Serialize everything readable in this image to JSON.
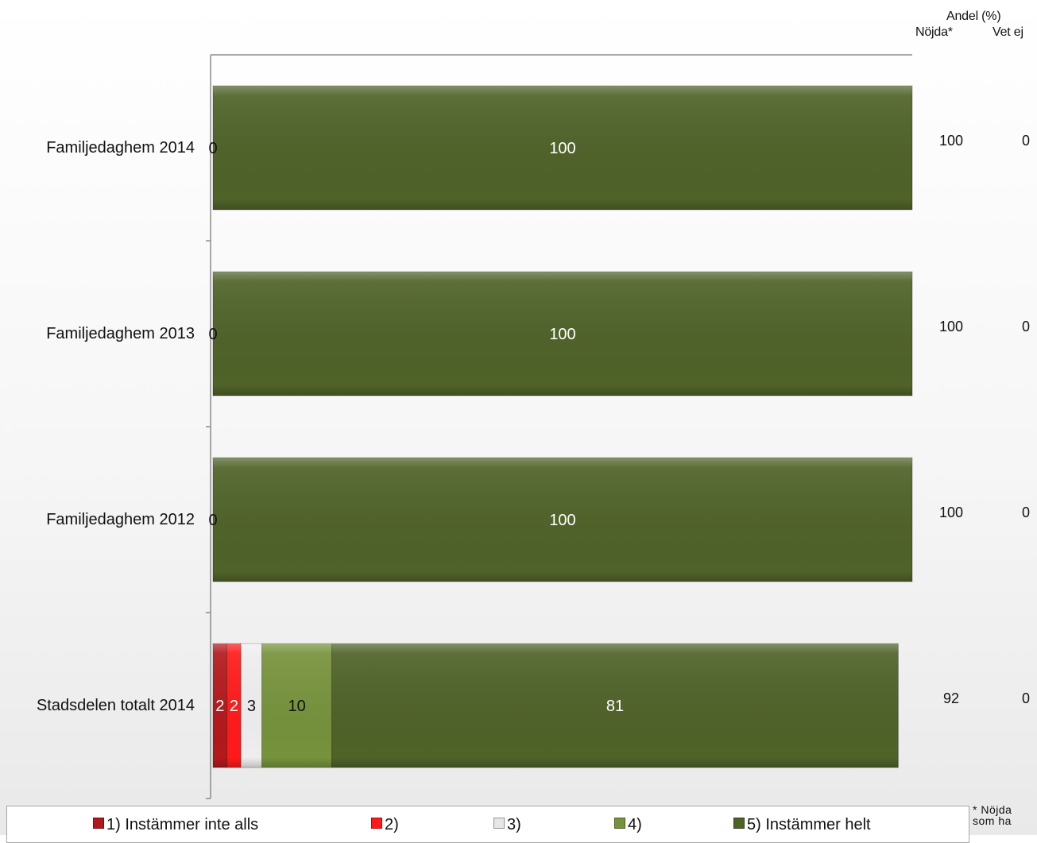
{
  "header": {
    "title": "Andel (%)",
    "col_nojda": "Nöjda*",
    "col_vetej": "Vet ej"
  },
  "chart_data": {
    "type": "bar",
    "orientation": "horizontal",
    "stacked": true,
    "categories": [
      "Familjedaghem 2014",
      "Familjedaghem 2013",
      "Familjedaghem 2012",
      "Stadsdelen totalt 2014"
    ],
    "series": [
      {
        "name": "1) Instämmer inte alls",
        "color": "#b2191c",
        "values": [
          0,
          0,
          0,
          2
        ]
      },
      {
        "name": "2)",
        "color": "#ff1a1a",
        "values": [
          0,
          0,
          0,
          2
        ]
      },
      {
        "name": "3)",
        "color": "#eeeeee",
        "values": [
          0,
          0,
          0,
          3
        ]
      },
      {
        "name": "4)",
        "color": "#76923c",
        "values": [
          0,
          0,
          0,
          10
        ]
      },
      {
        "name": "5) Instämmer helt",
        "color": "#4f6228",
        "values": [
          100,
          100,
          100,
          81
        ]
      }
    ],
    "side_columns": {
      "nojda": [
        100,
        100,
        100,
        92
      ],
      "vet_ej": [
        0,
        0,
        0,
        0
      ]
    },
    "xlim": [
      0,
      100
    ],
    "legend_position": "bottom"
  },
  "footnote": {
    "line1": "* Nöjda",
    "line2": "som ha"
  }
}
